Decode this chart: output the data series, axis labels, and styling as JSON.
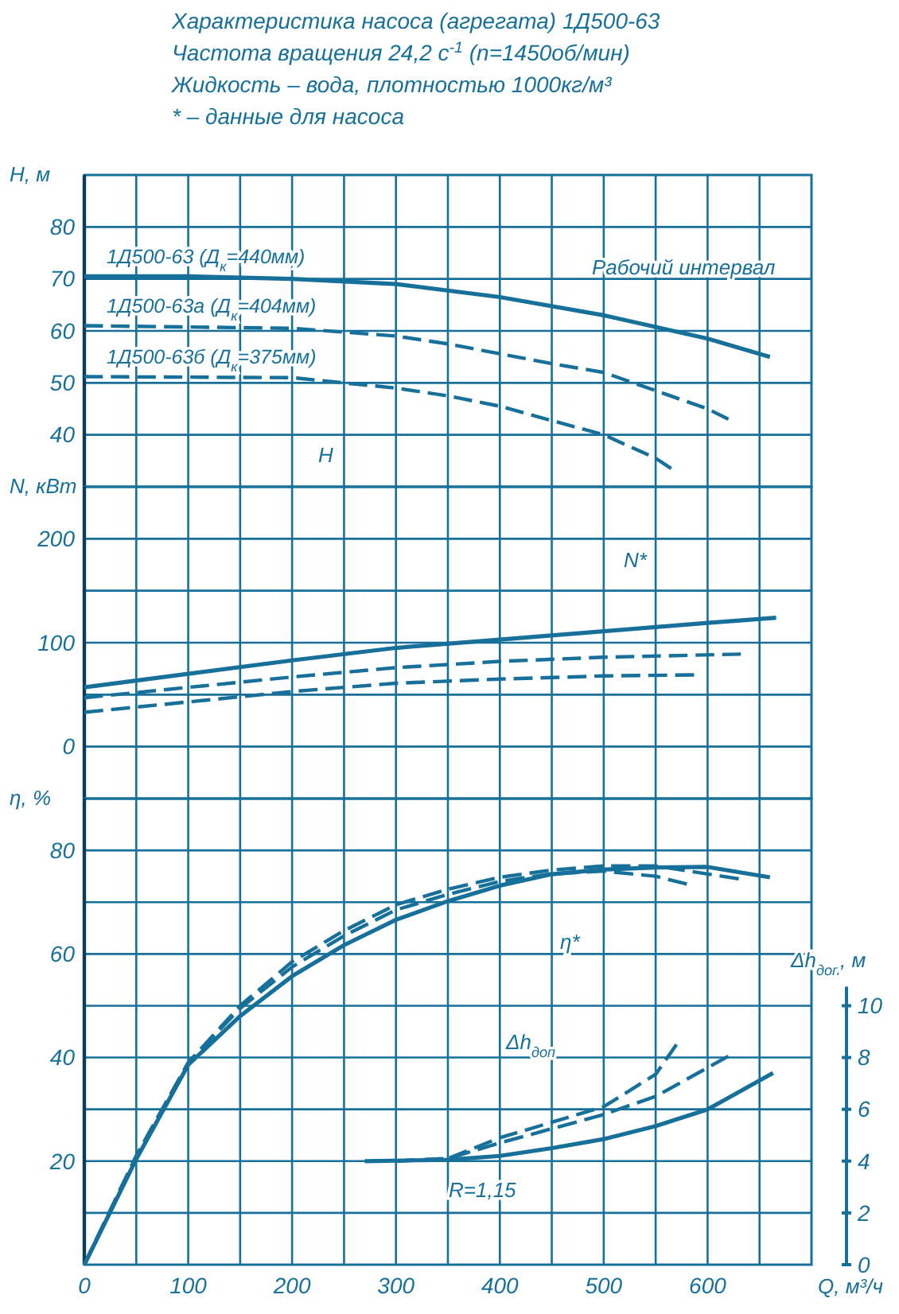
{
  "chart_data": [
    {
      "type": "line",
      "title": "Характеристика насоса (агрегата) 1Д500-63",
      "subtitle": "Частота вращения 24,2 с$^{-1}$ (n=1450об/мин)\nЖидкость – вода, плотностью 1000кг/м³\n* – данные для насоса",
      "ylabel": "H, м",
      "xlim": [
        0,
        700
      ],
      "ylim": [
        30,
        90
      ],
      "xticks": [
        0,
        {
          "value": 50,
          "label": null
        },
        100,
        {
          "value": 150,
          "label": null
        },
        200,
        {
          "value": 250,
          "label": null
        },
        300,
        {
          "value": 350,
          "label": null
        },
        400,
        {
          "value": 450,
          "label": null
        },
        500,
        {
          "value": 550,
          "label": null
        },
        600,
        {
          "value": 650,
          "label": null
        }
      ],
      "yticks": [
        40,
        50,
        60,
        70,
        80
      ],
      "grid": true,
      "tick_labels": "y",
      "annotations": [
        "Рабочий интервал",
        "H"
      ],
      "series": [
        {
          "name": "1Д500-63 (Д$_{к}$=440мм)",
          "color": "#16709a",
          "line_style": "solid",
          "x": [
            0,
            100,
            200,
            300,
            400,
            500,
            600,
            660
          ],
          "values": [
            70.5,
            70.5,
            70,
            69,
            66.5,
            63,
            58.5,
            55
          ]
        },
        {
          "name": "1Д500-63а (Д$_{к}$=404мм)",
          "color": "#16709a",
          "line_style": "dashed",
          "x": [
            0,
            200,
            300,
            350,
            450,
            500,
            600,
            620
          ],
          "values": [
            61,
            60.5,
            59,
            57.5,
            53.7,
            52,
            45,
            43
          ]
        },
        {
          "name": "1Д500-63б (Д$_{к}$=375мм)",
          "color": "#16709a",
          "line_style": "dashed",
          "x": [
            0,
            200,
            300,
            350,
            400,
            500,
            550,
            565
          ],
          "values": [
            51.2,
            51,
            49,
            47.5,
            45.5,
            40,
            35.5,
            33.5
          ]
        }
      ]
    },
    {
      "type": "line",
      "ylabel": "N, кВт",
      "xlim": [
        0,
        700
      ],
      "ylim": [
        -50,
        250
      ],
      "xticks": [
        0,
        {
          "value": 50,
          "label": null
        },
        100,
        {
          "value": 150,
          "label": null
        },
        200,
        {
          "value": 250,
          "label": null
        },
        300,
        {
          "value": 350,
          "label": null
        },
        400,
        {
          "value": 450,
          "label": null
        },
        500,
        {
          "value": 550,
          "label": null
        },
        600,
        {
          "value": 650,
          "label": null
        }
      ],
      "yticks": [
        0,
        {
          "value": 50,
          "label": null
        },
        100,
        {
          "value": 150,
          "label": null
        },
        200
      ],
      "grid": true,
      "tick_labels": "y",
      "annotations": [
        "N*"
      ],
      "series": [
        {
          "color": "#16709a",
          "line_style": "solid",
          "x": [
            0,
            100,
            200,
            300,
            400,
            500,
            600,
            666
          ],
          "values": [
            57,
            70,
            83,
            95,
            103,
            111,
            119,
            124
          ]
        },
        {
          "color": "#16709a",
          "line_style": "dashed",
          "x": [
            0,
            100,
            200,
            300,
            400,
            500,
            632
          ],
          "values": [
            47,
            57,
            67,
            76,
            82,
            86,
            89
          ]
        },
        {
          "color": "#16709a",
          "line_style": "dashed",
          "x": [
            0,
            100,
            200,
            300,
            400,
            500,
            587
          ],
          "values": [
            33,
            43,
            53,
            61,
            65,
            68,
            69
          ]
        }
      ]
    },
    {
      "type": "line",
      "ylabel": "η, %",
      "xlabel": "Q, м³/ч",
      "y2label": "Δh$_{доп}$, м",
      "xlim": [
        0,
        700
      ],
      "ylim": [
        0,
        90
      ],
      "y2lim": [
        0,
        18
      ],
      "xticks": [
        0,
        {
          "value": 50,
          "label": null
        },
        100,
        {
          "value": 150,
          "label": null
        },
        200,
        {
          "value": 250,
          "label": null
        },
        300,
        {
          "value": 350,
          "label": null
        },
        400,
        {
          "value": 450,
          "label": null
        },
        500,
        {
          "value": 550,
          "label": null
        },
        600,
        {
          "value": 650,
          "label": null
        }
      ],
      "yticks": [
        {
          "value": 10,
          "label": null
        },
        20,
        {
          "value": 30,
          "label": null
        },
        40,
        {
          "value": 50,
          "label": null
        },
        60,
        {
          "value": 70,
          "label": null
        },
        80
      ],
      "y2ticks": [
        0,
        2,
        4,
        6,
        8,
        10
      ],
      "grid": true,
      "annotations": [
        "η*",
        "Δh$_{доп}$",
        "R=1,15"
      ],
      "series": [
        {
          "color": "#16709a",
          "line_style": "solid",
          "x": [
            0,
            50,
            100,
            150,
            200,
            250,
            300,
            350,
            400,
            450,
            500,
            550,
            600,
            660
          ],
          "values": [
            0,
            20.4,
            38.6,
            48,
            55.7,
            61.7,
            66.6,
            70.2,
            73.2,
            75.4,
            76.3,
            76.7,
            76.8,
            74.8
          ]
        },
        {
          "color": "#16709a",
          "line_style": "dashed",
          "x": [
            0,
            50,
            100,
            150,
            200,
            250,
            300,
            350,
            400,
            450,
            500,
            550,
            630
          ],
          "values": [
            0,
            21,
            39,
            50,
            58.5,
            64.5,
            69.5,
            72.5,
            74.8,
            76.2,
            77,
            77,
            74.5
          ]
        },
        {
          "color": "#16709a",
          "line_style": "dashed",
          "x": [
            0,
            50,
            100,
            150,
            200,
            250,
            300,
            350,
            400,
            450,
            500,
            550,
            580
          ],
          "values": [
            0,
            21,
            39,
            49.5,
            57.5,
            63.5,
            68.5,
            71.5,
            74,
            75.5,
            76,
            75,
            73.5
          ]
        },
        {
          "color": "#16709a",
          "line_style": "solid",
          "axis": "y2",
          "x": [
            270,
            350,
            400,
            450,
            500,
            550,
            600,
            663
          ],
          "values": [
            4,
            4.05,
            4.2,
            4.5,
            4.85,
            5.35,
            6,
            7.4
          ]
        },
        {
          "color": "#16709a",
          "line_style": "dashed",
          "axis": "y2",
          "x": [
            300,
            350,
            400,
            500,
            550,
            620
          ],
          "values": [
            4,
            4.1,
            4.7,
            5.8,
            6.5,
            8.05
          ]
        },
        {
          "color": "#16709a",
          "line_style": "dashed",
          "axis": "y2",
          "x": [
            300,
            350,
            400,
            450,
            500,
            550,
            570
          ],
          "values": [
            4,
            4.1,
            4.9,
            5.5,
            6.1,
            7.35,
            8.5
          ]
        }
      ]
    }
  ]
}
